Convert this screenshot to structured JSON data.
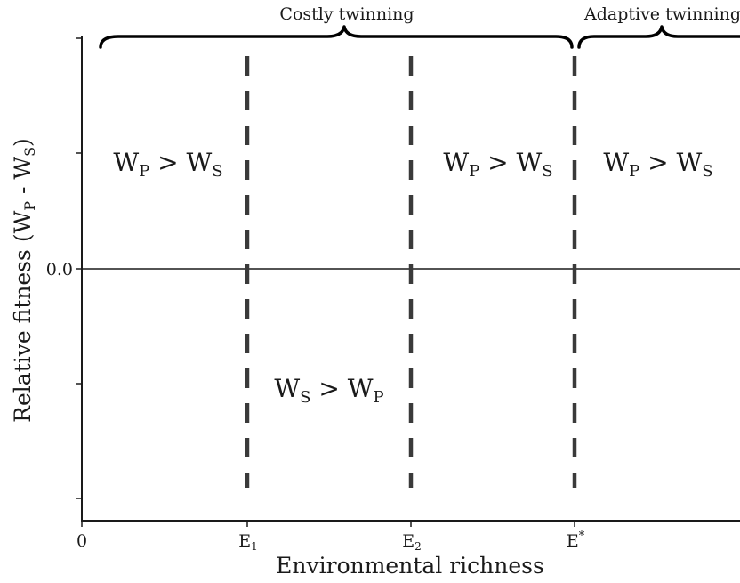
{
  "diagram": {
    "x_axis": {
      "label": "Environmental richness",
      "ticks": [
        {
          "label": "0",
          "sub": "",
          "sup": ""
        },
        {
          "label": "E",
          "sub": "1",
          "sup": ""
        },
        {
          "label": "E",
          "sub": "2",
          "sup": ""
        },
        {
          "label": "E",
          "sub": "",
          "sup": "*"
        }
      ]
    },
    "y_axis": {
      "label_main": "Relative fitness (W",
      "label_sub1": "P",
      "label_mid": " - W",
      "label_sub2": "S",
      "label_end": ")",
      "zero_label": "0.0"
    },
    "braces": {
      "costly": "Costly twinning",
      "adaptive": "Adaptive twinning"
    },
    "regions": {
      "left": {
        "a": "W",
        "a_sub": "P",
        "op": " > ",
        "b": "W",
        "b_sub": "S"
      },
      "middle_upper": {
        "a": "W",
        "a_sub": "P",
        "op": " > ",
        "b": "W",
        "b_sub": "S"
      },
      "right": {
        "a": "W",
        "a_sub": "P",
        "op": " > ",
        "b": "W",
        "b_sub": "S"
      },
      "lower": {
        "a": "W",
        "a_sub": "S",
        "op": " > ",
        "b": "W",
        "b_sub": "P"
      }
    },
    "colors": {
      "axis": "#1a1a1a",
      "dashed": "#3a3a3a",
      "text": "#1a1a1a"
    }
  }
}
